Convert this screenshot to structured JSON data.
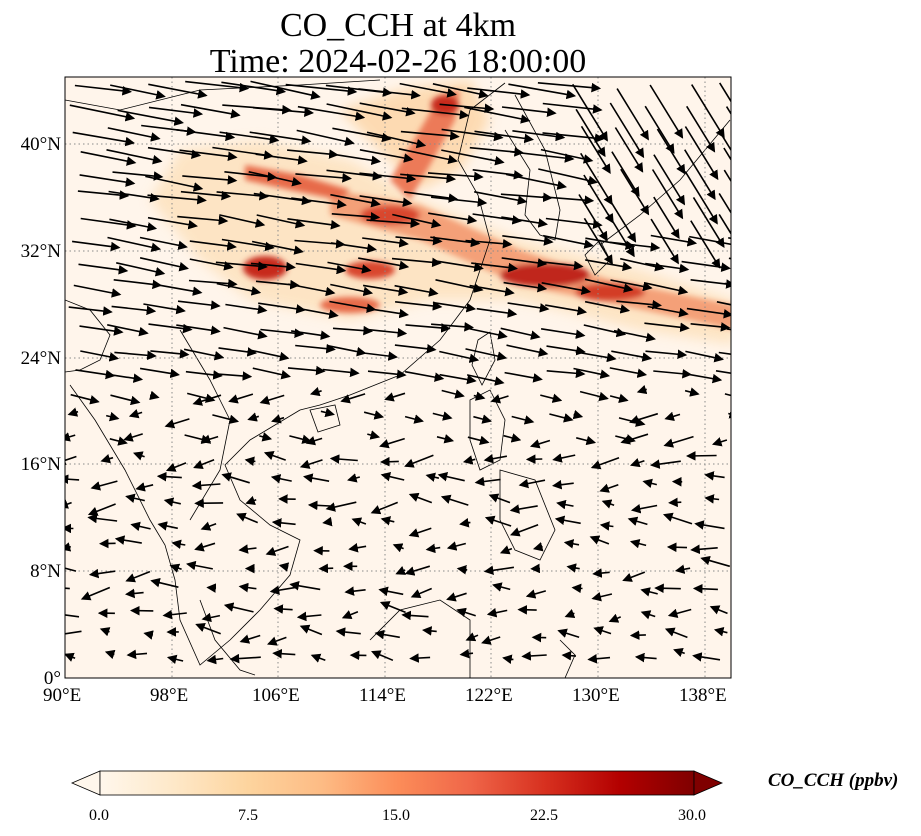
{
  "title_line1": "CO_CCH at 4km",
  "title_line2": "Time: 2024-02-26 18:00:00",
  "map": {
    "lon_range": [
      90,
      140
    ],
    "lat_range": [
      0,
      45
    ],
    "lon_ticks": [
      90,
      98,
      106,
      114,
      122,
      130,
      138
    ],
    "lat_ticks": [
      0,
      8,
      16,
      24,
      32,
      40
    ],
    "lon_tick_labels": [
      "90°E",
      "98°E",
      "106°E",
      "114°E",
      "122°E",
      "130°E",
      "138°E"
    ],
    "lat_tick_labels": [
      "0°",
      "8°N",
      "16°N",
      "24°N",
      "32°N",
      "40°N"
    ],
    "gridlines": "dotted",
    "background_color": "#fff5eb",
    "coastline_color": "#000000",
    "wind_vectors": "black arrows, strong westerlies north of 24°N, weak easterlies south"
  },
  "colorbar": {
    "label": "CO_CCH (ppbv)",
    "min": 0.0,
    "max": 30.0,
    "ticks": [
      "0.0",
      "7.5",
      "15.0",
      "22.5",
      "30.0"
    ],
    "colormap": "OrRd",
    "extend": "both"
  }
}
